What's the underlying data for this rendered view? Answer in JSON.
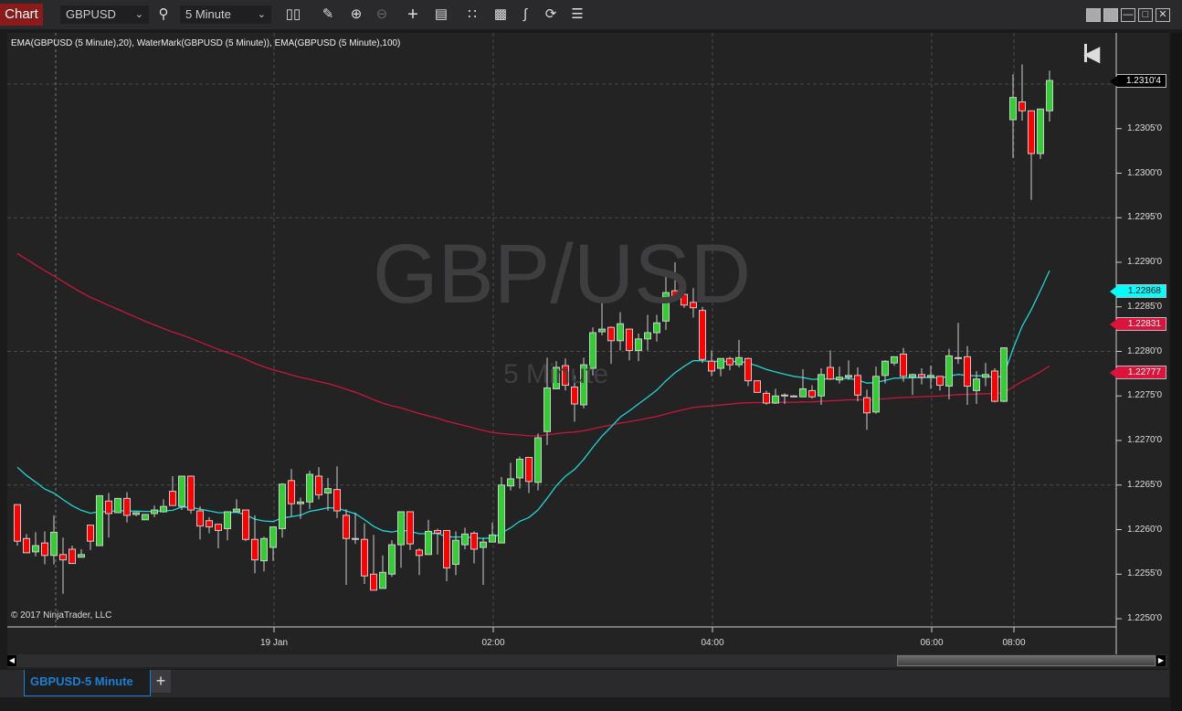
{
  "window": {
    "title": "Chart",
    "instrument": "GBPUSD",
    "interval": "5 Minute"
  },
  "toolbar": {
    "icons": [
      "bar-type-icon",
      "pencil-icon",
      "zoom-in-icon",
      "zoom-out-icon",
      "crosshair-icon",
      "data-box-icon",
      "indicators-icon",
      "strategies-icon",
      "drawing-tools-icon",
      "refresh-icon",
      "properties-icon"
    ]
  },
  "window_buttons": [
    "tile-icon",
    "tile-icon",
    "minimize-icon",
    "maximize-icon",
    "close-icon"
  ],
  "indicator_label": "EMA(GBPUSD (5 Minute),20), WaterMark(GBPUSD (5 Minute)), EMA(GBPUSD (5 Minute),100)",
  "watermark": {
    "title": "GBP/USD",
    "subtitle": "5 Minute"
  },
  "copyright": "© 2017 NinjaTrader, LLC",
  "tabs": [
    {
      "label": "GBPUSD-5 Minute",
      "active": true
    }
  ],
  "add_tab": "+",
  "colors": {
    "up": "#32cd32",
    "down": "#ff0000",
    "ema20": "#1fd6d6",
    "ema100": "#c8163c",
    "chart_tab": "#8b1a1a",
    "active_tab": "#1a7fd4"
  },
  "chart_data": {
    "type": "candlestick",
    "ylim": [
      1.225,
      1.2313
    ],
    "y_ticks": [
      "1.2305'0",
      "1.2300'0",
      "1.2295'0",
      "1.2290'0",
      "1.2285'0",
      "1.2280'0",
      "1.2275'0",
      "1.2270'0",
      "1.2265'0",
      "1.2260'0",
      "1.2255'0",
      "1.2250'0"
    ],
    "x_ticks": [
      {
        "label": "19 Jan",
        "bar": 28
      },
      {
        "label": "02:00",
        "bar": 52
      },
      {
        "label": "04:00",
        "bar": 76
      },
      {
        "label": "06:00",
        "bar": 100
      },
      {
        "label": "08:00",
        "bar": 109
      }
    ],
    "price_markers": [
      {
        "label": "1.2310'4",
        "value": 1.23104,
        "color": "#000000"
      },
      {
        "label": "1.22868",
        "value": 1.22868,
        "color": "#00ffff"
      },
      {
        "label": "1.22831",
        "value": 1.22831,
        "color": "#dc143c"
      },
      {
        "label": "1.22777",
        "value": 1.22777,
        "color": "#dc143c"
      }
    ],
    "ema20_start": 1.2267,
    "ema100_start": 1.2291,
    "ohlc": [
      [
        1.22628,
        1.22628,
        1.22582,
        1.22587
      ],
      [
        1.2259,
        1.22595,
        1.22574,
        1.22574
      ],
      [
        1.22575,
        1.22597,
        1.2257,
        1.22582
      ],
      [
        1.22585,
        1.22598,
        1.22561,
        1.22571
      ],
      [
        1.22571,
        1.22616,
        1.22561,
        1.22597
      ],
      [
        1.22572,
        1.22591,
        1.22528,
        1.22566
      ],
      [
        1.22578,
        1.22582,
        1.22562,
        1.22562
      ],
      [
        1.22569,
        1.22578,
        1.22569,
        1.22572
      ],
      [
        1.22605,
        1.22605,
        1.22577,
        1.22587
      ],
      [
        1.22582,
        1.22638,
        1.22582,
        1.22638
      ],
      [
        1.22632,
        1.22641,
        1.22591,
        1.22618
      ],
      [
        1.22619,
        1.22635,
        1.22619,
        1.22635
      ],
      [
        1.22635,
        1.22642,
        1.22608,
        1.22616
      ],
      [
        1.22617,
        1.22619,
        1.22615,
        1.22619
      ],
      [
        1.22611,
        1.22617,
        1.22611,
        1.22617
      ],
      [
        1.22618,
        1.22627,
        1.22614,
        1.22622
      ],
      [
        1.2262,
        1.22634,
        1.22619,
        1.22626
      ],
      [
        1.22643,
        1.2266,
        1.22627,
        1.22627
      ],
      [
        1.22626,
        1.2266,
        1.22622,
        1.2266
      ],
      [
        1.2266,
        1.2266,
        1.22618,
        1.22622
      ],
      [
        1.22621,
        1.22626,
        1.22589,
        1.22604
      ],
      [
        1.2261,
        1.22614,
        1.22596,
        1.22603
      ],
      [
        1.22606,
        1.22606,
        1.22579,
        1.22599
      ],
      [
        1.22601,
        1.2262,
        1.22588,
        1.2262
      ],
      [
        1.2262,
        1.22634,
        1.22619,
        1.22623
      ],
      [
        1.22622,
        1.22622,
        1.22587,
        1.22589
      ],
      [
        1.22589,
        1.22616,
        1.22551,
        1.22566
      ],
      [
        1.22565,
        1.22592,
        1.22553,
        1.2259
      ],
      [
        1.2258,
        1.22603,
        1.22565,
        1.22603
      ],
      [
        1.22601,
        1.22652,
        1.22591,
        1.22651
      ],
      [
        1.22655,
        1.22668,
        1.22615,
        1.22629
      ],
      [
        1.22629,
        1.22636,
        1.22612,
        1.22631
      ],
      [
        1.22631,
        1.22666,
        1.22623,
        1.22662
      ],
      [
        1.2266,
        1.2267,
        1.22634,
        1.22639
      ],
      [
        1.22641,
        1.22658,
        1.22621,
        1.22646
      ],
      [
        1.22645,
        1.22671,
        1.22613,
        1.22621
      ],
      [
        1.22616,
        1.22623,
        1.22538,
        1.2259
      ],
      [
        1.2259,
        1.22619,
        1.22584,
        1.22589
      ],
      [
        1.22589,
        1.22607,
        1.22539,
        1.22548
      ],
      [
        1.2255,
        1.22594,
        1.22532,
        1.22532
      ],
      [
        1.22534,
        1.22571,
        1.22534,
        1.22552
      ],
      [
        1.2255,
        1.22588,
        1.22547,
        1.22583
      ],
      [
        1.22583,
        1.2262,
        1.22557,
        1.2262
      ],
      [
        1.2262,
        1.2262,
        1.22577,
        1.22584
      ],
      [
        1.22577,
        1.22579,
        1.22549,
        1.22571
      ],
      [
        1.22572,
        1.22611,
        1.22572,
        1.22598
      ],
      [
        1.22599,
        1.22601,
        1.22572,
        1.22596
      ],
      [
        1.22599,
        1.22599,
        1.22542,
        1.22557
      ],
      [
        1.22561,
        1.22598,
        1.22549,
        1.22588
      ],
      [
        1.22583,
        1.22602,
        1.22578,
        1.22595
      ],
      [
        1.22596,
        1.22598,
        1.22562,
        1.22578
      ],
      [
        1.2258,
        1.22591,
        1.22538,
        1.22586
      ],
      [
        1.22586,
        1.22608,
        1.22586,
        1.22594
      ],
      [
        1.22585,
        1.22659,
        1.22585,
        1.2265
      ],
      [
        1.22649,
        1.22675,
        1.22644,
        1.22657
      ],
      [
        1.22658,
        1.22682,
        1.22646,
        1.22679
      ],
      [
        1.22681,
        1.22681,
        1.22641,
        1.22654
      ],
      [
        1.22653,
        1.22708,
        1.22644,
        1.22703
      ],
      [
        1.2271,
        1.22793,
        1.22695,
        1.22759
      ],
      [
        1.22758,
        1.22789,
        1.22758,
        1.22782
      ],
      [
        1.22784,
        1.22792,
        1.22756,
        1.22762
      ],
      [
        1.2276,
        1.22773,
        1.22721,
        1.22741
      ],
      [
        1.2274,
        1.22793,
        1.22736,
        1.22785
      ],
      [
        1.22781,
        1.22827,
        1.22773,
        1.22821
      ],
      [
        1.22822,
        1.22858,
        1.22818,
        1.22825
      ],
      [
        1.22827,
        1.22828,
        1.22786,
        1.22812
      ],
      [
        1.22812,
        1.22844,
        1.22801,
        1.22831
      ],
      [
        1.22825,
        1.22825,
        1.2279,
        1.22801
      ],
      [
        1.22801,
        1.2282,
        1.22789,
        1.22814
      ],
      [
        1.22814,
        1.22841,
        1.22801,
        1.22821
      ],
      [
        1.22821,
        1.22841,
        1.22811,
        1.22832
      ],
      [
        1.22834,
        1.22887,
        1.22824,
        1.22866
      ],
      [
        1.22868,
        1.229,
        1.22857,
        1.22862
      ],
      [
        1.22864,
        1.22873,
        1.22849,
        1.22852
      ],
      [
        1.22855,
        1.22871,
        1.22838,
        1.22849
      ],
      [
        1.22846,
        1.2285,
        1.22787,
        1.22791
      ],
      [
        1.22789,
        1.22801,
        1.22772,
        1.22778
      ],
      [
        1.22781,
        1.22792,
        1.22772,
        1.22792
      ],
      [
        1.22792,
        1.22794,
        1.22779,
        1.22785
      ],
      [
        1.22785,
        1.22813,
        1.22782,
        1.22793
      ],
      [
        1.22792,
        1.22793,
        1.22761,
        1.22767
      ],
      [
        1.22767,
        1.22767,
        1.22754,
        1.22754
      ],
      [
        1.22753,
        1.22756,
        1.2274,
        1.22742
      ],
      [
        1.22742,
        1.22758,
        1.22741,
        1.2275
      ],
      [
        1.22751,
        1.22753,
        1.22741,
        1.2275
      ],
      [
        1.2275,
        1.22751,
        1.22749,
        1.2275
      ],
      [
        1.22749,
        1.2278,
        1.22749,
        1.22758
      ],
      [
        1.22756,
        1.22762,
        1.22747,
        1.22749
      ],
      [
        1.2275,
        1.22781,
        1.2274,
        1.22774
      ],
      [
        1.22782,
        1.22801,
        1.22768,
        1.22769
      ],
      [
        1.22768,
        1.22783,
        1.22764,
        1.22771
      ],
      [
        1.22771,
        1.2279,
        1.22768,
        1.22773
      ],
      [
        1.22773,
        1.22782,
        1.22744,
        1.22751
      ],
      [
        1.22748,
        1.22757,
        1.22712,
        1.22731
      ],
      [
        1.22732,
        1.22783,
        1.2273,
        1.22772
      ],
      [
        1.22773,
        1.2279,
        1.22764,
        1.22789
      ],
      [
        1.22787,
        1.22794,
        1.22784,
        1.22794
      ],
      [
        1.22797,
        1.22804,
        1.22766,
        1.22772
      ],
      [
        1.22771,
        1.22775,
        1.22751,
        1.22774
      ],
      [
        1.22774,
        1.22781,
        1.22763,
        1.22771
      ],
      [
        1.22771,
        1.22784,
        1.22758,
        1.22773
      ],
      [
        1.22772,
        1.22772,
        1.22756,
        1.22762
      ],
      [
        1.22761,
        1.22803,
        1.22746,
        1.22795
      ],
      [
        1.22793,
        1.22832,
        1.22786,
        1.22792
      ],
      [
        1.22794,
        1.22806,
        1.2274,
        1.22761
      ],
      [
        1.22756,
        1.22778,
        1.22741,
        1.22769
      ],
      [
        1.22771,
        1.22787,
        1.22761,
        1.22774
      ],
      [
        1.22778,
        1.22781,
        1.22743,
        1.22744
      ],
      [
        1.22744,
        1.22804,
        1.22743,
        1.22804
      ],
      [
        1.2306,
        1.23111,
        1.23017,
        1.23085
      ],
      [
        1.2308,
        1.23122,
        1.23059,
        1.2307
      ],
      [
        1.2307,
        1.2307,
        1.2297,
        1.23022
      ],
      [
        1.23022,
        1.23072,
        1.23016,
        1.23072
      ],
      [
        1.2307,
        1.23115,
        1.23058,
        1.23104
      ]
    ]
  }
}
